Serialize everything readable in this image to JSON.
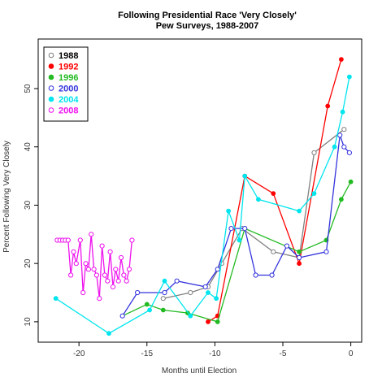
{
  "chart_data": {
    "type": "line",
    "title": "Following Presidential Race 'Very Closely'",
    "subtitle": "Pew Surveys, 1988-2007",
    "xlabel": "Months until Election",
    "ylabel": "Percent Following Very Closely",
    "xlim": [
      -23,
      0.8
    ],
    "ylim": [
      6.5,
      58.5
    ],
    "xticks": [
      -20,
      -15,
      -10,
      -5,
      0
    ],
    "yticks": [
      10,
      20,
      30,
      40,
      50
    ],
    "grid": false,
    "legend_position": "top-left",
    "series": [
      {
        "name": "1988",
        "color": "#808080",
        "marker": "open-circle",
        "x": [
          -13.8,
          -11.8,
          -10.5,
          -9.5,
          -8,
          -5.7,
          -3.8,
          -2.7,
          -0.5
        ],
        "y": [
          14,
          15,
          16,
          20,
          26,
          22,
          21,
          39,
          43
        ]
      },
      {
        "name": "1992",
        "color": "#ff0000",
        "marker": "filled-circle",
        "x": [
          -10.5,
          -9.8,
          -7.8,
          -5.7,
          -3.8,
          -1.7,
          -0.7
        ],
        "y": [
          10,
          11,
          35,
          32,
          20,
          47,
          55
        ]
      },
      {
        "name": "1996",
        "color": "#22bb22",
        "marker": "filled-circle",
        "x": [
          -16.8,
          -15,
          -13.8,
          -12,
          -9.8,
          -7.8,
          -3.8,
          -1.8,
          -0.7,
          0
        ],
        "y": [
          11,
          13,
          12,
          11.5,
          10,
          26,
          22,
          24,
          31,
          34
        ]
      },
      {
        "name": "2000",
        "color": "#3333dd",
        "marker": "open-circle",
        "x": [
          -16.8,
          -15.7,
          -13.7,
          -12.8,
          -10.7,
          -9.8,
          -8.8,
          -7.8,
          -7,
          -5.8,
          -4.7,
          -3.8,
          -1.8,
          -0.8,
          -0.5,
          -0.1
        ],
        "y": [
          11,
          15,
          15,
          17,
          16,
          19,
          26,
          26,
          18,
          18,
          23,
          21,
          22,
          42,
          40,
          39
        ]
      },
      {
        "name": "2004",
        "color": "#00e5ee",
        "marker": "filled-circle",
        "x": [
          -21.7,
          -17.8,
          -14.8,
          -13.7,
          -11.8,
          -10.5,
          -9.9,
          -9,
          -8.2,
          -7.8,
          -6.8,
          -3.8,
          -2.7,
          -1.2,
          -0.6,
          -0.1
        ],
        "y": [
          14,
          8,
          12,
          17,
          11,
          15,
          14,
          29,
          24,
          35,
          31,
          29,
          32,
          40,
          46,
          52
        ]
      },
      {
        "name": "2008",
        "color": "#ee11ee",
        "marker": "open-circle",
        "x": [
          -21.6,
          -21.4,
          -21.2,
          -21,
          -20.8,
          -20.6,
          -20.4,
          -20.2,
          -19.9,
          -19.7,
          -19.5,
          -19.3,
          -19.1,
          -18.9,
          -18.7,
          -18.5,
          -18.3,
          -18.1,
          -17.9,
          -17.7,
          -17.5,
          -17.3,
          -17.1,
          -16.9,
          -16.7,
          -16.5,
          -16.3,
          -16.1
        ],
        "y": [
          24,
          24,
          24,
          24,
          24,
          18,
          22,
          20,
          24,
          15,
          20,
          19,
          25,
          19,
          18,
          14,
          23,
          18,
          17,
          22,
          16,
          19,
          17,
          21,
          18,
          17,
          19,
          24
        ]
      }
    ]
  }
}
